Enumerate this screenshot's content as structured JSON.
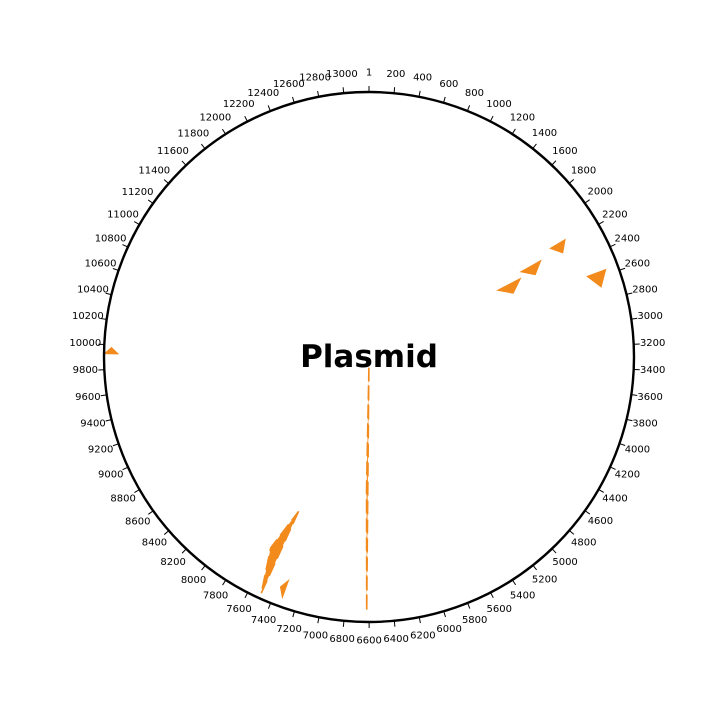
{
  "title": "Plasmid",
  "sequence_length": 13200,
  "ticks": [
    1,
    200,
    400,
    600,
    800,
    1000,
    1200,
    1400,
    1600,
    1800,
    2000,
    2200,
    2400,
    2600,
    2800,
    3000,
    3200,
    3400,
    3600,
    3800,
    4000,
    4200,
    4400,
    4600,
    4800,
    5000,
    5200,
    5400,
    5600,
    5800,
    6000,
    6200,
    6400,
    6600,
    6800,
    7000,
    7200,
    7400,
    7600,
    7800,
    8000,
    8200,
    8400,
    8600,
    8800,
    9000,
    9200,
    9400,
    9600,
    9800,
    10000,
    10200,
    10400,
    10600,
    10800,
    11000,
    11200,
    11400,
    11600,
    11800,
    12000,
    12200,
    12400,
    12600,
    12800,
    13000
  ],
  "colors": {
    "ring": "#000000",
    "feature": "#f28a1c"
  },
  "features": [
    {
      "start": 2170,
      "end": 2260,
      "r_inner": 0.8,
      "r_outer": 0.86
    },
    {
      "start": 2230,
      "end": 2330,
      "r_inner": 0.66,
      "r_outer": 0.74
    },
    {
      "start": 2300,
      "end": 2420,
      "r_inner": 0.55,
      "r_outer": 0.64
    },
    {
      "start": 2560,
      "end": 2680,
      "r_inner": 0.88,
      "r_outer": 0.95
    },
    {
      "start": 6620,
      "end": 6640,
      "r_inner": 0.04,
      "r_outer": 0.96
    },
    {
      "start": 7330,
      "end": 7370,
      "r_inner": 0.9,
      "r_outer": 0.96
    },
    {
      "start": 7500,
      "end": 7600,
      "r_inner": 0.64,
      "r_outer": 0.98
    },
    {
      "start": 9930,
      "end": 9975,
      "r_inner": 0.95,
      "r_outer": 0.995
    }
  ]
}
